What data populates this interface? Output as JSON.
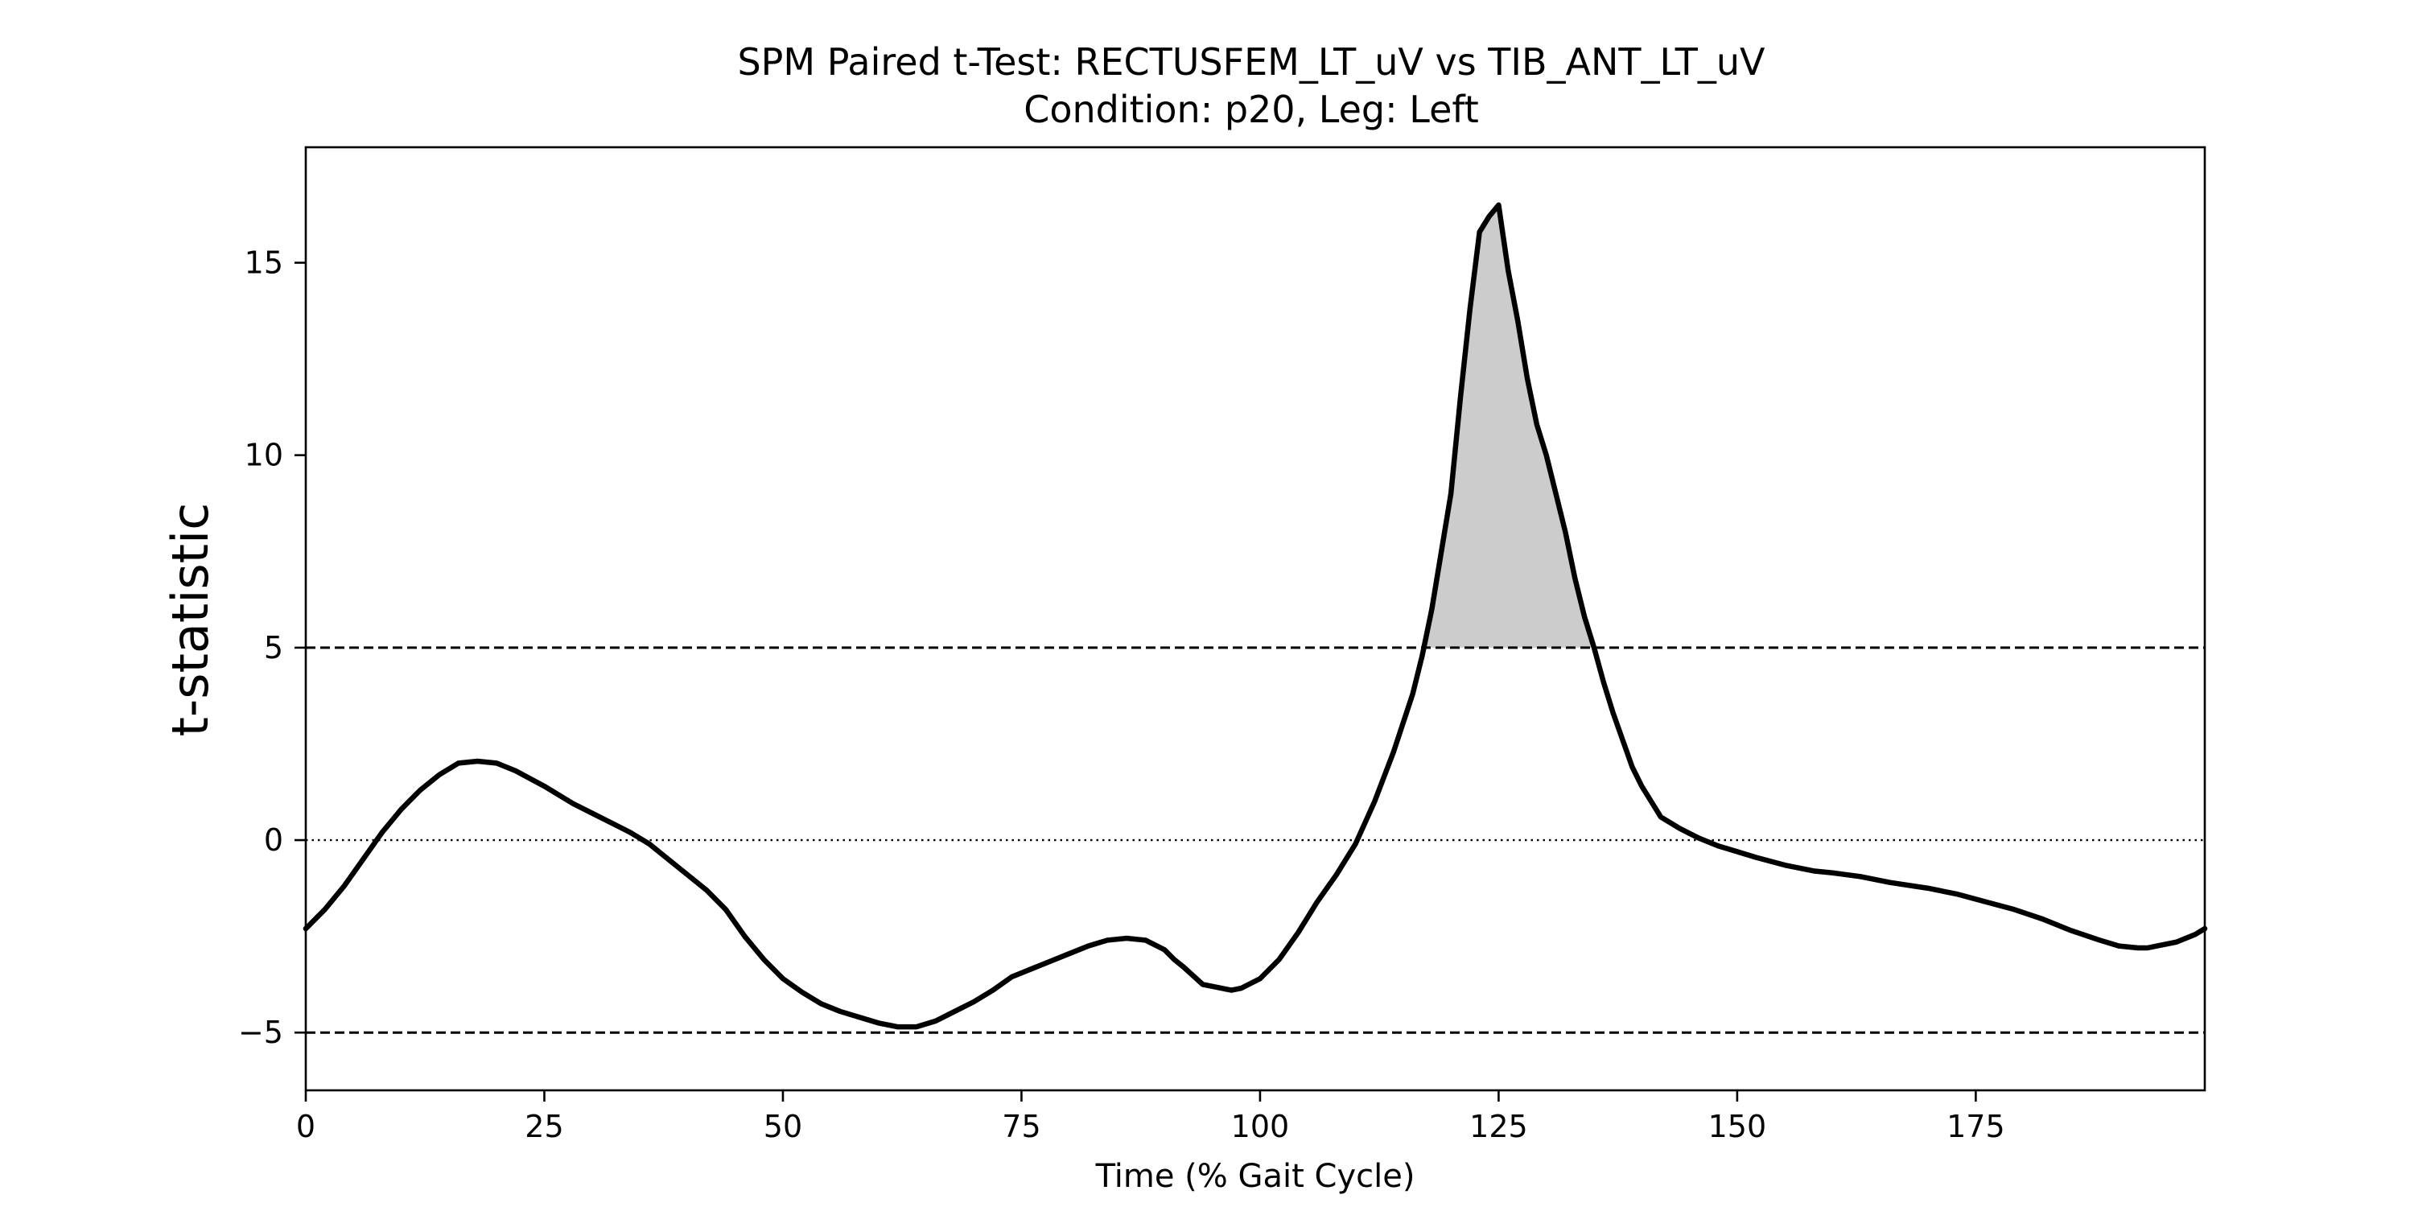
{
  "chart_data": {
    "type": "line",
    "title": "SPM Paired t-Test: RECTUSFEM_LT_uV vs TIB_ANT_LT_uV",
    "subtitle": "Condition: p20, Leg: Left",
    "xlabel": "Time (% Gait Cycle)",
    "ylabel": "t-statistic",
    "xlim": [
      0,
      199
    ],
    "ylim": [
      -6.5,
      18
    ],
    "xticks": [
      0,
      25,
      50,
      75,
      100,
      125,
      150,
      175
    ],
    "xtick_labels": [
      "0",
      "25",
      "50",
      "75",
      "100",
      "125",
      "150",
      "175"
    ],
    "yticks": [
      -5,
      0,
      5,
      10,
      15
    ],
    "ytick_labels": [
      "−5",
      "0",
      "5",
      "10",
      "15"
    ],
    "grid": false,
    "threshold": 5.0,
    "zero_line": 0,
    "line_color": "#000000",
    "fill_color": "#cccccc",
    "series": [
      {
        "x": [
          0,
          2,
          4,
          6,
          8,
          10,
          12,
          14,
          16,
          18,
          20,
          22,
          25,
          28,
          30,
          32,
          34,
          36,
          38,
          40,
          42,
          44,
          46,
          48,
          50,
          52,
          54,
          56,
          58,
          60,
          62,
          64,
          66,
          68,
          70,
          72,
          74,
          76,
          78,
          80,
          82,
          84,
          86,
          88,
          90,
          91,
          92,
          94,
          96,
          97,
          98,
          100,
          102,
          104,
          106,
          108,
          110,
          112,
          114,
          116,
          117,
          118,
          119,
          120,
          121,
          122,
          123,
          124,
          125,
          126,
          127,
          128,
          129,
          130,
          131,
          132,
          133,
          134,
          135,
          136,
          137,
          138,
          139,
          140,
          142,
          144,
          146,
          148,
          150,
          152,
          155,
          158,
          160,
          163,
          166,
          170,
          173,
          176,
          179,
          182,
          185,
          188,
          190,
          192,
          193,
          194,
          196,
          198,
          199
        ],
        "y": [
          -2.3,
          -1.8,
          -1.2,
          -0.5,
          0.2,
          0.8,
          1.3,
          1.7,
          2.0,
          2.05,
          2.0,
          1.8,
          1.4,
          0.95,
          0.7,
          0.45,
          0.2,
          -0.1,
          -0.5,
          -0.9,
          -1.3,
          -1.8,
          -2.5,
          -3.1,
          -3.6,
          -3.95,
          -4.25,
          -4.45,
          -4.6,
          -4.75,
          -4.85,
          -4.85,
          -4.7,
          -4.45,
          -4.2,
          -3.9,
          -3.55,
          -3.35,
          -3.15,
          -2.95,
          -2.75,
          -2.6,
          -2.55,
          -2.6,
          -2.85,
          -3.1,
          -3.3,
          -3.75,
          -3.85,
          -3.9,
          -3.85,
          -3.6,
          -3.1,
          -2.4,
          -1.6,
          -0.9,
          -0.1,
          1.0,
          2.3,
          3.8,
          4.8,
          6.0,
          7.5,
          9.0,
          11.5,
          13.8,
          15.8,
          16.2,
          16.5,
          14.8,
          13.5,
          12.0,
          10.8,
          10.0,
          9.0,
          8.0,
          6.8,
          5.8,
          5.0,
          4.1,
          3.3,
          2.6,
          1.9,
          1.4,
          0.6,
          0.3,
          0.05,
          -0.15,
          -0.3,
          -0.45,
          -0.65,
          -0.8,
          -0.85,
          -0.95,
          -1.1,
          -1.25,
          -1.4,
          -1.6,
          -1.8,
          -2.05,
          -2.35,
          -2.6,
          -2.75,
          -2.8,
          -2.8,
          -2.75,
          -2.65,
          -2.45,
          -2.3
        ]
      }
    ]
  }
}
